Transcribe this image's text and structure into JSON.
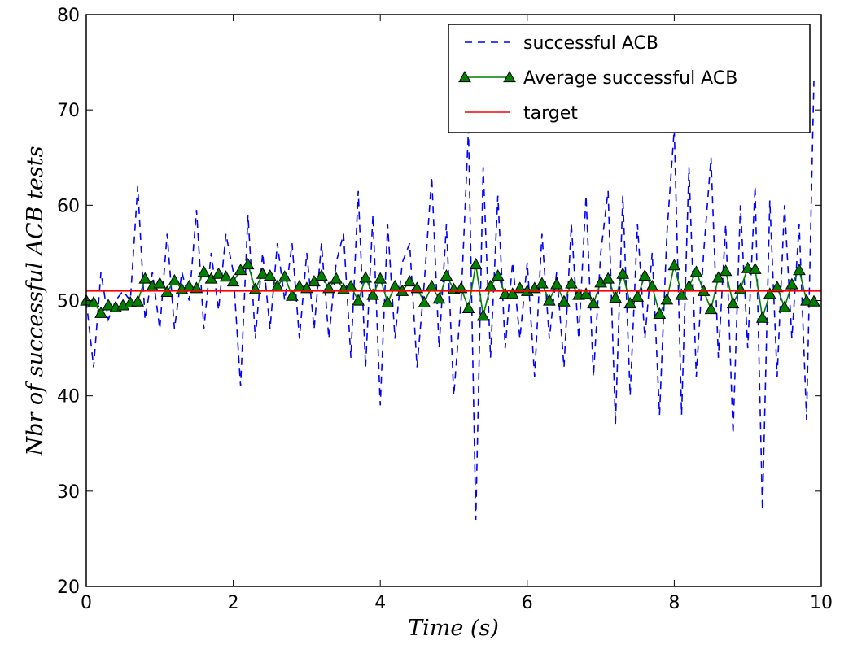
{
  "chart_data": {
    "type": "line",
    "xlabel": "Time (s)",
    "ylabel": "Nbr of successful ACB tests",
    "xlim": [
      0,
      10
    ],
    "xticks": [
      0,
      2,
      4,
      6,
      8,
      10
    ],
    "ylim": [
      20,
      80
    ],
    "yticks": [
      20,
      30,
      40,
      50,
      60,
      70,
      80
    ],
    "legend": "upper right",
    "x": [
      0,
      0.1,
      0.2,
      0.3,
      0.4,
      0.5,
      0.6,
      0.7,
      0.8,
      0.9,
      1,
      1.1,
      1.2,
      1.3,
      1.4,
      1.5,
      1.6,
      1.7,
      1.8,
      1.9,
      2,
      2.1,
      2.2,
      2.3,
      2.4,
      2.5,
      2.6,
      2.7,
      2.8,
      2.9,
      3,
      3.1,
      3.2,
      3.3,
      3.4,
      3.5,
      3.6,
      3.7,
      3.8,
      3.9,
      4,
      4.1,
      4.2,
      4.3,
      4.4,
      4.5,
      4.6,
      4.7,
      4.8,
      4.9,
      5,
      5.1,
      5.2,
      5.3,
      5.4,
      5.5,
      5.6,
      5.7,
      5.8,
      5.9,
      6,
      6.1,
      6.2,
      6.3,
      6.4,
      6.5,
      6.6,
      6.7,
      6.8,
      6.9,
      7,
      7.1,
      7.2,
      7.3,
      7.4,
      7.5,
      7.6,
      7.7,
      7.8,
      7.9,
      8,
      8.1,
      8.2,
      8.3,
      8.4,
      8.5,
      8.6,
      8.7,
      8.8,
      8.9,
      9,
      9.1,
      9.2,
      9.3,
      9.4,
      9.5,
      9.6,
      9.7,
      9.8,
      9.9
    ],
    "series": [
      {
        "name": "successful ACB",
        "color": "#0000ff",
        "style": "dashed",
        "values": [
          50,
          43,
          53,
          48,
          50,
          51,
          50,
          62,
          48,
          53,
          47,
          57,
          47,
          53,
          50,
          59.5,
          47,
          55,
          49,
          57,
          53,
          41,
          59,
          46,
          55,
          47,
          56,
          50,
          56,
          46,
          55,
          47,
          56,
          46,
          54,
          57,
          44,
          61.5,
          43,
          59,
          39,
          58,
          46,
          54,
          56,
          43,
          52,
          63,
          45,
          58,
          40,
          50,
          68,
          27,
          64,
          44,
          61,
          45,
          54,
          46,
          54,
          42,
          57,
          46,
          53,
          43,
          58,
          46,
          61,
          42,
          55,
          61.5,
          37,
          61,
          40,
          58,
          46,
          55,
          38,
          57,
          68,
          38,
          64,
          42,
          55,
          65,
          44,
          58,
          36,
          60,
          45,
          62,
          28,
          60.5,
          42,
          60,
          46,
          58,
          37.5,
          73
        ]
      },
      {
        "name": "Average successful ACB",
        "color": "#008000",
        "marker": "triangle",
        "values": [
          50,
          49.8,
          48.7,
          49.5,
          49.3,
          49.5,
          49.8,
          49.9,
          52.3,
          51.5,
          51.8,
          50.9,
          52.1,
          51.2,
          51.5,
          51.3,
          53,
          52.3,
          52.8,
          52.5,
          52,
          53.2,
          53.8,
          51.2,
          52.8,
          52.6,
          51.5,
          52.5,
          50.5,
          51.5,
          51.3,
          52,
          52.6,
          51.3,
          52.3,
          51.2,
          51.5,
          50,
          52.4,
          50.6,
          52.3,
          49.8,
          51.5,
          51,
          52,
          51.3,
          49.8,
          51.5,
          50.2,
          52.6,
          51.2,
          51.3,
          49.2,
          53.8,
          48.4,
          51.5,
          52.6,
          50.7,
          50.7,
          51.3,
          51,
          51.3,
          51.8,
          50,
          51.7,
          49.9,
          51.8,
          50.6,
          50.7,
          49.7,
          51.9,
          52.3,
          50.3,
          52.8,
          49.7,
          50.4,
          52.6,
          51.5,
          48.6,
          50.1,
          53.7,
          50.6,
          51.5,
          53,
          51,
          49.1,
          52.4,
          53.1,
          49.7,
          51.2,
          53.4,
          53.3,
          48.2,
          50.7,
          51.4,
          49.3,
          51.7,
          53.2,
          50,
          49.9
        ]
      },
      {
        "name": "target",
        "color": "#ff0000",
        "y": 51
      }
    ]
  }
}
